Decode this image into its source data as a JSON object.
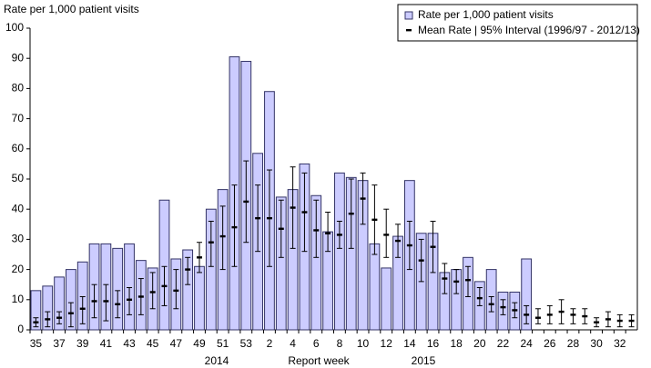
{
  "chart_data": {
    "type": "bar_errorbar",
    "ylabel": "Rate per 1,000  patient visits",
    "xlabel": "Report week",
    "annotations": [
      "2014",
      "2015"
    ],
    "categories": [
      "35",
      null,
      "37",
      null,
      "39",
      null,
      "41",
      null,
      "43",
      null,
      "45",
      null,
      "47",
      null,
      "49",
      null,
      "51",
      null,
      "53",
      null,
      "2",
      null,
      "4",
      null,
      "6",
      null,
      "8",
      null,
      "10",
      null,
      "12",
      null,
      "14",
      null,
      "16",
      null,
      "18",
      null,
      "20",
      null,
      "22",
      null,
      "24",
      null,
      "26",
      null,
      "28",
      null,
      "30",
      null,
      "32",
      null
    ],
    "ylim": [
      0,
      100
    ],
    "yticks": [
      0,
      10,
      20,
      30,
      40,
      50,
      60,
      70,
      80,
      90,
      100
    ],
    "grid": false,
    "legend": "top-right",
    "series": [
      {
        "name": "Rate per 1,000 patient visits",
        "color": "#ccccff",
        "edge": "#333366",
        "values": [
          13,
          14.5,
          17.5,
          20,
          22.5,
          28.5,
          28.5,
          27,
          28.5,
          23,
          20.5,
          43,
          23.5,
          26.5,
          21,
          40,
          46.5,
          90.5,
          89,
          58.5,
          79,
          44,
          46.5,
          55,
          44.5,
          32.5,
          52,
          50.5,
          49.5,
          28.5,
          20.5,
          31,
          49.5,
          32,
          32,
          19,
          20,
          24,
          16,
          20,
          12.5,
          12.5,
          23.5,
          null,
          null,
          null,
          null,
          null,
          null,
          null,
          null,
          null
        ]
      },
      {
        "name": "Mean Rate | 95% Interval (1996/97 - 2012/13)",
        "color": "#000000",
        "values": [
          2.5,
          3.5,
          4,
          5.5,
          7,
          9.5,
          9.5,
          8.5,
          10,
          11,
          12.5,
          14.5,
          13,
          20,
          24,
          29,
          31,
          34,
          42.5,
          37,
          37,
          33.5,
          40.5,
          39,
          33,
          32,
          31.5,
          38.5,
          43.5,
          36.5,
          31.5,
          29.5,
          28,
          23,
          27.5,
          17,
          16,
          16.5,
          10.5,
          8.5,
          7.5,
          6.5,
          5,
          4,
          5,
          6,
          5,
          4.5,
          2.5,
          3.5,
          3,
          3
        ],
        "lower": [
          1,
          1,
          2,
          1,
          2,
          4,
          3,
          4,
          5,
          5,
          7,
          8,
          7,
          15,
          19,
          21,
          20,
          21,
          29,
          26,
          21,
          24,
          27,
          26,
          24,
          26,
          27,
          27,
          35,
          25,
          24,
          24,
          20,
          16,
          19,
          12,
          12,
          11,
          8,
          6,
          5,
          4,
          2,
          2,
          2,
          2,
          2,
          2,
          1,
          1,
          1,
          1
        ],
        "upper": [
          4,
          6,
          6,
          9,
          11,
          15,
          15,
          13,
          14,
          17,
          19,
          21,
          20,
          24,
          29,
          36,
          41,
          48,
          56,
          48,
          53,
          43,
          54,
          52,
          43,
          39,
          36,
          50,
          52,
          48,
          40,
          35,
          36,
          30,
          36,
          22,
          20,
          21,
          14,
          11,
          10,
          9,
          8,
          7,
          8,
          10,
          7,
          7,
          4,
          6,
          5,
          5
        ]
      }
    ]
  }
}
